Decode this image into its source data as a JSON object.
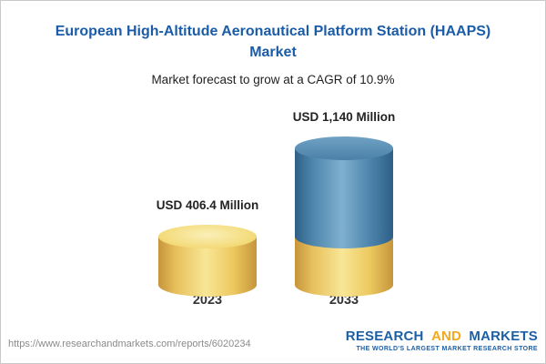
{
  "header": {
    "title_lines": [
      "European High-Altitude Aeronautical Platform Station (HAAPS)",
      "Market"
    ],
    "subtitle": "Market forecast to grow at a CAGR of 10.9%"
  },
  "chart_data": {
    "type": "bar",
    "bar_style": "3d-cylinder",
    "title": "European High-Altitude Aeronautical Platform Station (HAAPS) Market",
    "subtitle": "Market forecast to grow at a CAGR of 10.9%",
    "categories": [
      "2023",
      "2033"
    ],
    "values": [
      406.4,
      1140
    ],
    "unit": "USD Million",
    "value_labels": [
      "USD 406.4 Million",
      "USD 1,140 Million"
    ],
    "cagr_percent": 10.9,
    "grid": false,
    "legend": "none",
    "colors": {
      "bar_2023": "#F0CB5F",
      "bar_2033_growth": "#4E86AE",
      "bar_2033_base": "#F0CB5F",
      "title_text": "#1B5CA8"
    },
    "notes": "2033 bar shows the 2023 value as a yellow base segment with a blue growth segment stacked above"
  },
  "footer": {
    "url": "https://www.researchandmarkets.com/reports/6020234",
    "logo": {
      "word1": "RESEARCH",
      "word2": "AND",
      "word3": "MARKETS",
      "tagline": "THE WORLD'S LARGEST MARKET RESEARCH STORE"
    }
  }
}
